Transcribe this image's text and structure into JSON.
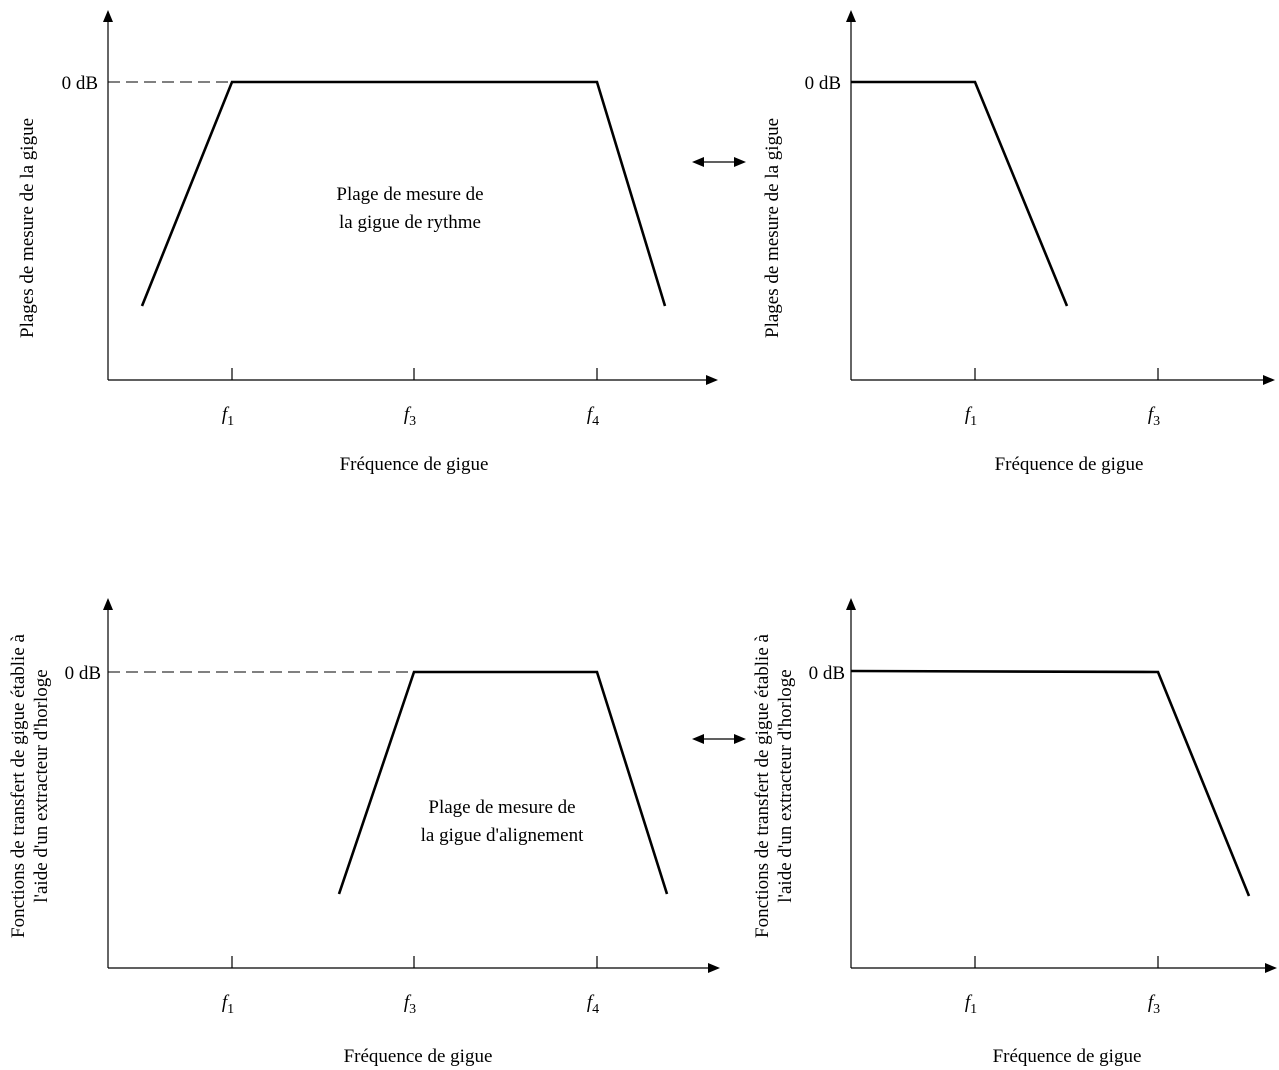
{
  "top_left": {
    "y_axis_label": "Plages de mesure de la gigue",
    "x_axis_label": "Fréquence de gigue",
    "level_label": "0 dB",
    "ticks": [
      {
        "name": "f",
        "sub": "1"
      },
      {
        "name": "f",
        "sub": "3"
      },
      {
        "name": "f",
        "sub": "4"
      }
    ],
    "region_label_line1": "Plage de mesure de",
    "region_label_line2": "la gigue de rythme"
  },
  "top_right": {
    "y_axis_label": "Plages de mesure de la gigue",
    "x_axis_label": "Fréquence de gigue",
    "level_label": "0 dB",
    "ticks": [
      {
        "name": "f",
        "sub": "1"
      },
      {
        "name": "f",
        "sub": "3"
      }
    ]
  },
  "bottom_left": {
    "y_axis_label_line1": "Fonctions de transfert de gigue établie à",
    "y_axis_label_line2": "l'aide d'un extracteur d'horloge",
    "x_axis_label": "Fréquence de gigue",
    "level_label": "0 dB",
    "ticks": [
      {
        "name": "f",
        "sub": "1"
      },
      {
        "name": "f",
        "sub": "3"
      },
      {
        "name": "f",
        "sub": "4"
      }
    ],
    "region_label_line1": "Plage de mesure de",
    "region_label_line2": "la gigue d'alignement"
  },
  "bottom_right": {
    "y_axis_label_line1": "Fonctions de transfert de gigue établie à",
    "y_axis_label_line2": "l'aide d'un extracteur d'horloge",
    "x_axis_label": "Fréquence de gigue",
    "level_label": "0 dB",
    "ticks": [
      {
        "name": "f",
        "sub": "1"
      },
      {
        "name": "f",
        "sub": "3"
      }
    ]
  },
  "connector_icon": "double-arrow-icon"
}
